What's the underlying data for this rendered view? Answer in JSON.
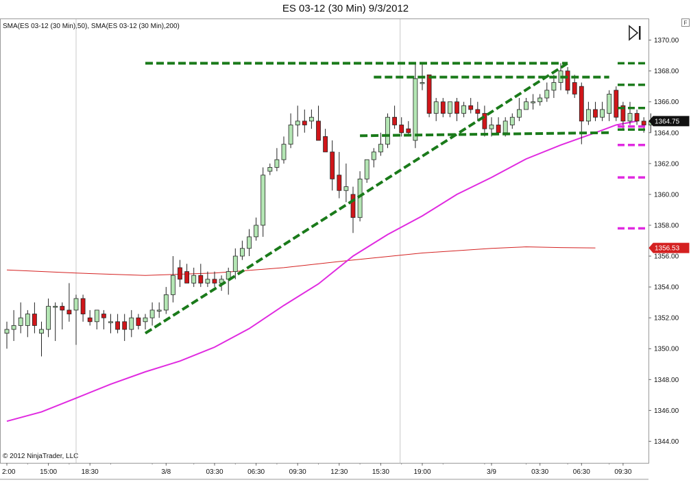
{
  "window": {
    "title": "ES 03-12 (30 Min)  9/3/2012",
    "indicator_label": "SMA(ES 03-12 (30 Min),50), SMA(ES 03-12 (30 Min),200)",
    "copyright": "© 2012 NinjaTrader, LLC",
    "f_button": "F",
    "scroll_end_icon": "skip-to-end-icon"
  },
  "colors": {
    "up_candle": "#b4e6b4",
    "down_candle": "#d0161a",
    "trendline": "#1a7a1a",
    "sma50": "#e02ae0",
    "sma200": "#d42020",
    "last_price_tag": "#111111",
    "sma200_tag": "#d42020"
  },
  "chart_data": {
    "type": "candlestick",
    "title": "ES 03-12 (30 Min)  9/3/2012",
    "ylim": [
      1342.6,
      1371.4
    ],
    "yticks": [
      "1370.00",
      "1368.00",
      "1366.00",
      "1364.00",
      "1362.00",
      "1360.00",
      "1358.00",
      "1356.00",
      "1354.00",
      "1352.00",
      "1350.00",
      "1348.00",
      "1346.00",
      "1344.00"
    ],
    "xticks": [
      {
        "label": "2:00",
        "bar": 0
      },
      {
        "label": "15:00",
        "bar": 6
      },
      {
        "label": "18:30",
        "bar": 12
      },
      {
        "label": "3/8",
        "bar": 23
      },
      {
        "label": "03:30",
        "bar": 30
      },
      {
        "label": "06:30",
        "bar": 36
      },
      {
        "label": "09:30",
        "bar": 42
      },
      {
        "label": "12:30",
        "bar": 48
      },
      {
        "label": "15:30",
        "bar": 54
      },
      {
        "label": "19:00",
        "bar": 60
      },
      {
        "label": "3/9",
        "bar": 70
      },
      {
        "label": "03:30",
        "bar": 77
      },
      {
        "label": "06:30",
        "bar": 83
      },
      {
        "label": "09:30",
        "bar": 89
      }
    ],
    "session_breaks": [
      10,
      56.8
    ],
    "candles": [
      {
        "o": 1351.0,
        "h": 1351.75,
        "l": 1350.0,
        "c": 1351.25
      },
      {
        "o": 1351.25,
        "h": 1352.5,
        "l": 1350.5,
        "c": 1351.5
      },
      {
        "o": 1351.5,
        "h": 1353.0,
        "l": 1351.0,
        "c": 1352.0
      },
      {
        "o": 1351.5,
        "h": 1352.5,
        "l": 1350.75,
        "c": 1352.25
      },
      {
        "o": 1352.25,
        "h": 1353.0,
        "l": 1351.0,
        "c": 1351.5
      },
      {
        "o": 1351.0,
        "h": 1351.75,
        "l": 1349.5,
        "c": 1351.25
      },
      {
        "o": 1351.25,
        "h": 1353.25,
        "l": 1350.75,
        "c": 1352.75
      },
      {
        "o": 1352.75,
        "h": 1353.0,
        "l": 1350.5,
        "c": 1352.75
      },
      {
        "o": 1352.75,
        "h": 1353.0,
        "l": 1351.25,
        "c": 1352.5
      },
      {
        "o": 1352.5,
        "h": 1354.25,
        "l": 1351.75,
        "c": 1352.25
      },
      {
        "o": 1352.5,
        "h": 1353.5,
        "l": 1350.25,
        "c": 1353.25
      },
      {
        "o": 1353.25,
        "h": 1353.5,
        "l": 1351.75,
        "c": 1352.25
      },
      {
        "o": 1352.0,
        "h": 1352.5,
        "l": 1351.5,
        "c": 1351.75
      },
      {
        "o": 1351.75,
        "h": 1352.5,
        "l": 1351.25,
        "c": 1352.5
      },
      {
        "o": 1352.25,
        "h": 1352.5,
        "l": 1351.25,
        "c": 1352.0
      },
      {
        "o": 1351.75,
        "h": 1352.25,
        "l": 1351.0,
        "c": 1351.75
      },
      {
        "o": 1351.75,
        "h": 1352.25,
        "l": 1351.0,
        "c": 1351.25
      },
      {
        "o": 1351.75,
        "h": 1352.25,
        "l": 1350.5,
        "c": 1351.25
      },
      {
        "o": 1351.25,
        "h": 1352.5,
        "l": 1350.75,
        "c": 1352.0
      },
      {
        "o": 1352.0,
        "h": 1352.25,
        "l": 1351.25,
        "c": 1351.5
      },
      {
        "o": 1351.75,
        "h": 1352.25,
        "l": 1351.25,
        "c": 1352.0
      },
      {
        "o": 1352.0,
        "h": 1353.0,
        "l": 1351.5,
        "c": 1352.5
      },
      {
        "o": 1352.5,
        "h": 1353.0,
        "l": 1352.0,
        "c": 1352.5
      },
      {
        "o": 1352.5,
        "h": 1354.0,
        "l": 1352.25,
        "c": 1353.5
      },
      {
        "o": 1353.5,
        "h": 1356.0,
        "l": 1353.0,
        "c": 1354.75
      },
      {
        "o": 1355.25,
        "h": 1355.75,
        "l": 1354.0,
        "c": 1354.5
      },
      {
        "o": 1355.0,
        "h": 1355.5,
        "l": 1354.5,
        "c": 1354.25
      },
      {
        "o": 1354.25,
        "h": 1355.25,
        "l": 1354.0,
        "c": 1354.75
      },
      {
        "o": 1354.75,
        "h": 1355.5,
        "l": 1354.0,
        "c": 1354.25
      },
      {
        "o": 1354.25,
        "h": 1355.0,
        "l": 1354.0,
        "c": 1354.5
      },
      {
        "o": 1354.5,
        "h": 1355.0,
        "l": 1354.0,
        "c": 1354.25
      },
      {
        "o": 1354.25,
        "h": 1354.75,
        "l": 1353.75,
        "c": 1354.5
      },
      {
        "o": 1354.5,
        "h": 1355.25,
        "l": 1353.5,
        "c": 1355.0
      },
      {
        "o": 1355.0,
        "h": 1356.5,
        "l": 1354.5,
        "c": 1356.0
      },
      {
        "o": 1356.0,
        "h": 1357.0,
        "l": 1355.75,
        "c": 1356.5
      },
      {
        "o": 1356.5,
        "h": 1357.75,
        "l": 1356.0,
        "c": 1357.25
      },
      {
        "o": 1357.25,
        "h": 1358.5,
        "l": 1357.0,
        "c": 1358.0
      },
      {
        "o": 1358.0,
        "h": 1361.75,
        "l": 1357.25,
        "c": 1361.25
      },
      {
        "o": 1361.5,
        "h": 1362.0,
        "l": 1361.25,
        "c": 1361.75
      },
      {
        "o": 1361.75,
        "h": 1363.0,
        "l": 1361.5,
        "c": 1362.25
      },
      {
        "o": 1362.25,
        "h": 1363.75,
        "l": 1362.0,
        "c": 1363.25
      },
      {
        "o": 1363.25,
        "h": 1365.25,
        "l": 1363.0,
        "c": 1364.5
      },
      {
        "o": 1364.5,
        "h": 1365.75,
        "l": 1363.75,
        "c": 1364.75
      },
      {
        "o": 1364.75,
        "h": 1365.5,
        "l": 1364.0,
        "c": 1364.5
      },
      {
        "o": 1364.75,
        "h": 1365.5,
        "l": 1364.25,
        "c": 1365.0
      },
      {
        "o": 1364.75,
        "h": 1365.75,
        "l": 1363.75,
        "c": 1363.5
      },
      {
        "o": 1363.75,
        "h": 1364.25,
        "l": 1362.75,
        "c": 1362.75
      },
      {
        "o": 1362.75,
        "h": 1363.5,
        "l": 1360.25,
        "c": 1361.0
      },
      {
        "o": 1361.25,
        "h": 1362.75,
        "l": 1359.75,
        "c": 1360.25
      },
      {
        "o": 1360.25,
        "h": 1362.0,
        "l": 1359.5,
        "c": 1360.5
      },
      {
        "o": 1360.0,
        "h": 1360.5,
        "l": 1357.5,
        "c": 1358.5
      },
      {
        "o": 1358.5,
        "h": 1361.5,
        "l": 1358.25,
        "c": 1361.0
      },
      {
        "o": 1361.0,
        "h": 1362.25,
        "l": 1360.75,
        "c": 1362.25
      },
      {
        "o": 1362.25,
        "h": 1363.0,
        "l": 1361.75,
        "c": 1362.75
      },
      {
        "o": 1362.75,
        "h": 1364.0,
        "l": 1362.5,
        "c": 1363.25
      },
      {
        "o": 1363.25,
        "h": 1365.25,
        "l": 1363.0,
        "c": 1365.0
      },
      {
        "o": 1365.0,
        "h": 1365.75,
        "l": 1364.25,
        "c": 1364.5
      },
      {
        "o": 1364.5,
        "h": 1365.0,
        "l": 1363.75,
        "c": 1364.0
      },
      {
        "o": 1364.25,
        "h": 1364.75,
        "l": 1363.75,
        "c": 1364.0
      },
      {
        "o": 1363.5,
        "h": 1368.5,
        "l": 1363.0,
        "c": 1367.5
      },
      {
        "o": 1367.25,
        "h": 1368.5,
        "l": 1366.75,
        "c": 1367.25
      },
      {
        "o": 1367.75,
        "h": 1367.75,
        "l": 1365.0,
        "c": 1365.25
      },
      {
        "o": 1365.25,
        "h": 1366.25,
        "l": 1364.75,
        "c": 1366.0
      },
      {
        "o": 1366.0,
        "h": 1366.25,
        "l": 1365.0,
        "c": 1365.25
      },
      {
        "o": 1365.25,
        "h": 1366.0,
        "l": 1365.0,
        "c": 1366.0
      },
      {
        "o": 1366.0,
        "h": 1366.25,
        "l": 1364.75,
        "c": 1365.25
      },
      {
        "o": 1365.25,
        "h": 1366.0,
        "l": 1365.0,
        "c": 1365.75
      },
      {
        "o": 1365.75,
        "h": 1366.25,
        "l": 1365.25,
        "c": 1365.5
      },
      {
        "o": 1365.5,
        "h": 1366.0,
        "l": 1364.75,
        "c": 1365.25
      },
      {
        "o": 1365.25,
        "h": 1365.75,
        "l": 1363.75,
        "c": 1364.25
      },
      {
        "o": 1364.25,
        "h": 1365.0,
        "l": 1363.75,
        "c": 1364.5
      },
      {
        "o": 1364.5,
        "h": 1365.0,
        "l": 1364.25,
        "c": 1364.0
      },
      {
        "o": 1364.0,
        "h": 1365.0,
        "l": 1363.75,
        "c": 1364.75
      },
      {
        "o": 1364.5,
        "h": 1365.25,
        "l": 1364.25,
        "c": 1365.0
      },
      {
        "o": 1365.0,
        "h": 1366.25,
        "l": 1364.75,
        "c": 1365.5
      },
      {
        "o": 1365.5,
        "h": 1366.25,
        "l": 1365.5,
        "c": 1366.0
      },
      {
        "o": 1366.0,
        "h": 1366.5,
        "l": 1365.5,
        "c": 1366.0
      },
      {
        "o": 1366.0,
        "h": 1366.5,
        "l": 1365.75,
        "c": 1366.25
      },
      {
        "o": 1366.25,
        "h": 1367.25,
        "l": 1366.0,
        "c": 1366.75
      },
      {
        "o": 1366.75,
        "h": 1367.75,
        "l": 1366.25,
        "c": 1367.25
      },
      {
        "o": 1367.25,
        "h": 1368.5,
        "l": 1366.75,
        "c": 1368.0
      },
      {
        "o": 1368.0,
        "h": 1368.25,
        "l": 1366.5,
        "c": 1366.75
      },
      {
        "o": 1367.25,
        "h": 1367.75,
        "l": 1366.25,
        "c": 1366.5
      },
      {
        "o": 1367.0,
        "h": 1367.25,
        "l": 1363.25,
        "c": 1364.75
      },
      {
        "o": 1364.75,
        "h": 1366.0,
        "l": 1364.5,
        "c": 1365.5
      },
      {
        "o": 1365.5,
        "h": 1366.0,
        "l": 1364.75,
        "c": 1365.0
      },
      {
        "o": 1365.0,
        "h": 1366.0,
        "l": 1364.75,
        "c": 1365.5
      },
      {
        "o": 1365.25,
        "h": 1366.75,
        "l": 1364.75,
        "c": 1366.5
      },
      {
        "o": 1366.75,
        "h": 1367.0,
        "l": 1364.75,
        "c": 1365.0
      },
      {
        "o": 1365.75,
        "h": 1366.0,
        "l": 1364.25,
        "c": 1364.75
      },
      {
        "o": 1364.75,
        "h": 1366.0,
        "l": 1364.5,
        "c": 1365.25
      },
      {
        "o": 1365.25,
        "h": 1365.5,
        "l": 1364.5,
        "c": 1364.75
      },
      {
        "o": 1364.75,
        "h": 1365.0,
        "l": 1364.0,
        "c": 1364.5
      },
      {
        "o": 1364.5,
        "h": 1365.25,
        "l": 1364.0,
        "c": 1364.75
      }
    ],
    "sma50": [
      {
        "bar": 0,
        "v": 1345.3
      },
      {
        "bar": 5,
        "v": 1345.9
      },
      {
        "bar": 10,
        "v": 1346.8
      },
      {
        "bar": 15,
        "v": 1347.7
      },
      {
        "bar": 20,
        "v": 1348.5
      },
      {
        "bar": 25,
        "v": 1349.2
      },
      {
        "bar": 30,
        "v": 1350.1
      },
      {
        "bar": 35,
        "v": 1351.3
      },
      {
        "bar": 40,
        "v": 1352.8
      },
      {
        "bar": 45,
        "v": 1354.2
      },
      {
        "bar": 50,
        "v": 1356.0
      },
      {
        "bar": 55,
        "v": 1357.4
      },
      {
        "bar": 60,
        "v": 1358.6
      },
      {
        "bar": 65,
        "v": 1360.0
      },
      {
        "bar": 70,
        "v": 1361.1
      },
      {
        "bar": 75,
        "v": 1362.3
      },
      {
        "bar": 80,
        "v": 1363.2
      },
      {
        "bar": 85,
        "v": 1364.0
      },
      {
        "bar": 88,
        "v": 1364.5
      },
      {
        "bar": 91,
        "v": 1364.75
      }
    ],
    "sma200": [
      {
        "bar": 0,
        "v": 1355.1
      },
      {
        "bar": 10,
        "v": 1354.9
      },
      {
        "bar": 20,
        "v": 1354.75
      },
      {
        "bar": 30,
        "v": 1354.9
      },
      {
        "bar": 40,
        "v": 1355.25
      },
      {
        "bar": 50,
        "v": 1355.75
      },
      {
        "bar": 60,
        "v": 1356.2
      },
      {
        "bar": 70,
        "v": 1356.5
      },
      {
        "bar": 75,
        "v": 1356.6
      },
      {
        "bar": 80,
        "v": 1356.55
      },
      {
        "bar": 85,
        "v": 1356.53
      }
    ],
    "trendlines": [
      {
        "from": {
          "bar": 20,
          "v": 1351.0
        },
        "to": {
          "bar": 81,
          "v": 1368.5
        }
      },
      {
        "from": {
          "bar": 20,
          "v": 1368.5
        },
        "to": {
          "bar": 81,
          "v": 1368.5
        }
      },
      {
        "from": {
          "bar": 53,
          "v": 1367.6
        },
        "to": {
          "bar": 87,
          "v": 1367.6
        }
      },
      {
        "from": {
          "bar": 51,
          "v": 1363.8
        },
        "to": {
          "bar": 87,
          "v": 1364.0
        }
      }
    ],
    "right_margin_marks": [
      {
        "v": 1368.5,
        "color": "#1a7a1a"
      },
      {
        "v": 1367.1,
        "color": "#1a7a1a"
      },
      {
        "v": 1365.6,
        "color": "#1a7a1a"
      },
      {
        "v": 1364.2,
        "color": "#1a7a1a"
      },
      {
        "v": 1364.4,
        "color": "#e02ae0"
      },
      {
        "v": 1363.2,
        "color": "#e02ae0"
      },
      {
        "v": 1361.1,
        "color": "#e02ae0"
      },
      {
        "v": 1357.8,
        "color": "#e02ae0"
      }
    ],
    "price_tags": [
      {
        "label": "1364.75",
        "v": 1364.75,
        "color": "#111111"
      },
      {
        "label": "1356.53",
        "v": 1356.53,
        "color": "#d42020"
      }
    ]
  }
}
